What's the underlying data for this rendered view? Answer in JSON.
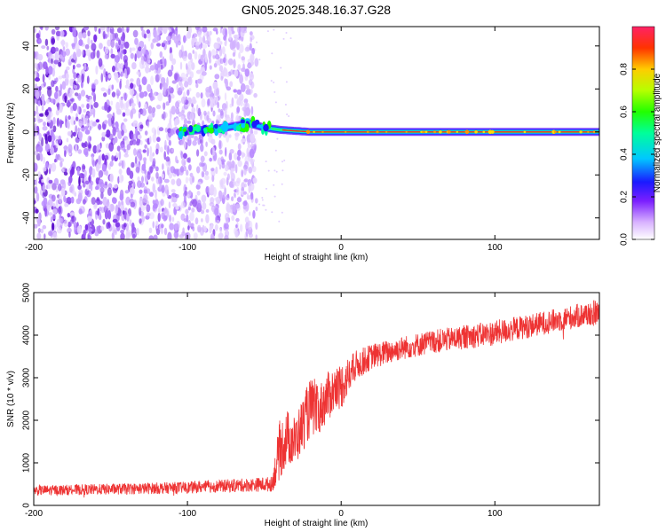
{
  "title": "GN05.2025.348.16.37.G28",
  "colors": {
    "snr_line": "#ee3333",
    "spectrogram_noise": "#8a2be2",
    "ridge_core": "#ff2020"
  },
  "chart_data": [
    {
      "type": "heatmap",
      "name": "spectrogram",
      "xlabel": "Height of straight line (km)",
      "ylabel": "Frequency (Hz)",
      "xlim": [
        -200,
        168
      ],
      "ylim": [
        -50,
        49
      ],
      "xticks": [
        -200,
        -100,
        0,
        100
      ],
      "xtick_labels": [
        "-200",
        "-100",
        "0",
        "100"
      ],
      "yticks": [
        -40,
        -20,
        0,
        20,
        40
      ],
      "ytick_labels": [
        "-40",
        "-20",
        "0",
        "20",
        "40"
      ],
      "noise_region_x": [
        -200,
        -55
      ],
      "signal_ridge": {
        "x": [
          -105,
          -90,
          -75,
          -60,
          -50,
          -40,
          -30,
          -20,
          -10,
          0,
          20,
          50,
          80,
          100,
          130,
          168
        ],
        "freq": [
          0,
          1,
          2,
          4,
          2,
          1,
          0.5,
          0,
          0,
          0,
          0,
          0,
          0,
          0,
          0,
          0
        ]
      },
      "colorbar": {
        "label": "Normalized spectral amplitude",
        "range": [
          0.0,
          1.0
        ],
        "ticks": [
          0.0,
          0.2,
          0.4,
          0.6,
          0.8
        ],
        "tick_labels": [
          "0.0",
          "0.2",
          "0.4",
          "0.6",
          "0.8"
        ]
      }
    },
    {
      "type": "line",
      "name": "snr",
      "xlabel": "Height of straight line (km)",
      "ylabel": "SNR (10 * v/v)",
      "xlim": [
        -200,
        168
      ],
      "ylim": [
        0,
        5000
      ],
      "xticks": [
        -200,
        -100,
        0,
        100
      ],
      "xtick_labels": [
        "-200",
        "-100",
        "0",
        "100"
      ],
      "yticks": [
        0,
        1000,
        2000,
        3000,
        4000,
        5000
      ],
      "ytick_labels": [
        "0",
        "1000",
        "2000",
        "3000",
        "4000",
        "5000"
      ],
      "trend": {
        "x": [
          -200,
          -150,
          -100,
          -60,
          -45,
          -40,
          -35,
          -30,
          -25,
          -20,
          -15,
          -10,
          -5,
          0,
          10,
          20,
          40,
          60,
          80,
          100,
          120,
          140,
          168
        ],
        "mid": [
          350,
          380,
          420,
          480,
          500,
          1300,
          1600,
          1500,
          1900,
          2300,
          2200,
          2500,
          2700,
          2800,
          3300,
          3500,
          3700,
          3850,
          3950,
          4050,
          4200,
          4350,
          4550
        ],
        "spread": [
          120,
          130,
          140,
          160,
          180,
          700,
          650,
          600,
          650,
          700,
          600,
          600,
          550,
          550,
          350,
          300,
          280,
          280,
          280,
          300,
          280,
          280,
          300
        ]
      }
    }
  ]
}
